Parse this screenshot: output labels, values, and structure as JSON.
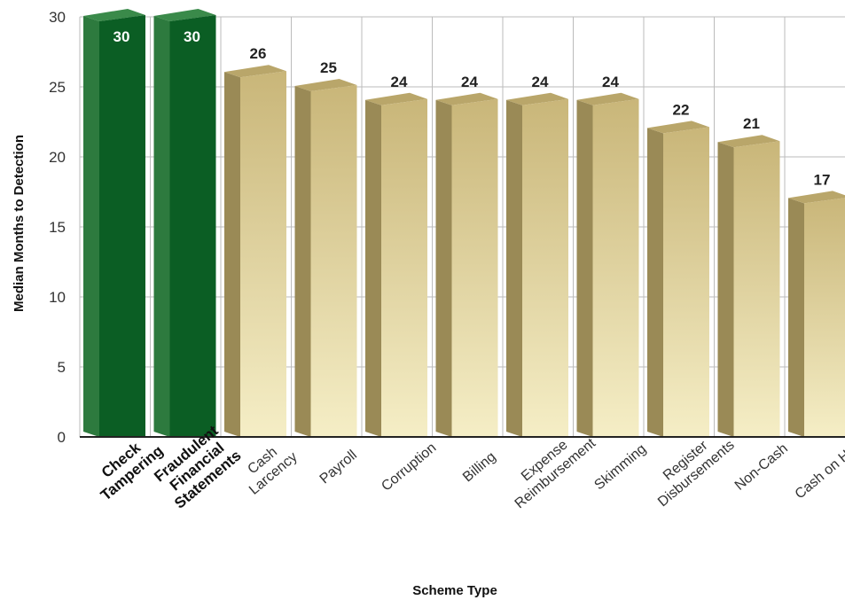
{
  "chart_data": {
    "type": "bar",
    "title": "",
    "xlabel": "Scheme Type",
    "ylabel": "Median Months to Detection",
    "ylim": [
      0,
      30
    ],
    "yticks": [
      0,
      5,
      10,
      15,
      20,
      25,
      30
    ],
    "grid": true,
    "categories": [
      [
        "Check",
        "Tampering"
      ],
      [
        "Fraudulent",
        "Financial",
        "Statements"
      ],
      [
        "Cash",
        "Larcency"
      ],
      [
        "Payroll"
      ],
      [
        "Corruption"
      ],
      [
        "Billing"
      ],
      [
        "Expense",
        "Reimbursement"
      ],
      [
        "Skimming"
      ],
      [
        "Register",
        "Disbursements"
      ],
      [
        "Non-Cash"
      ],
      [
        "Cash on Hand"
      ]
    ],
    "values": [
      30,
      30,
      26,
      25,
      24,
      24,
      24,
      24,
      22,
      21,
      17
    ],
    "highlighted": [
      true,
      true,
      false,
      false,
      false,
      false,
      false,
      false,
      false,
      false,
      false
    ],
    "colors": {
      "highlight_front": "#0b5e24",
      "highlight_side": "#2d7a3e",
      "highlight_top": "#3a8a4a",
      "normal_front_top": "#c9b679",
      "normal_front_bottom": "#f5eec6",
      "normal_side": "#9a8a56",
      "normal_top": "#b9a66a",
      "grid": "#bbbbbb",
      "axis": "#222222"
    }
  }
}
